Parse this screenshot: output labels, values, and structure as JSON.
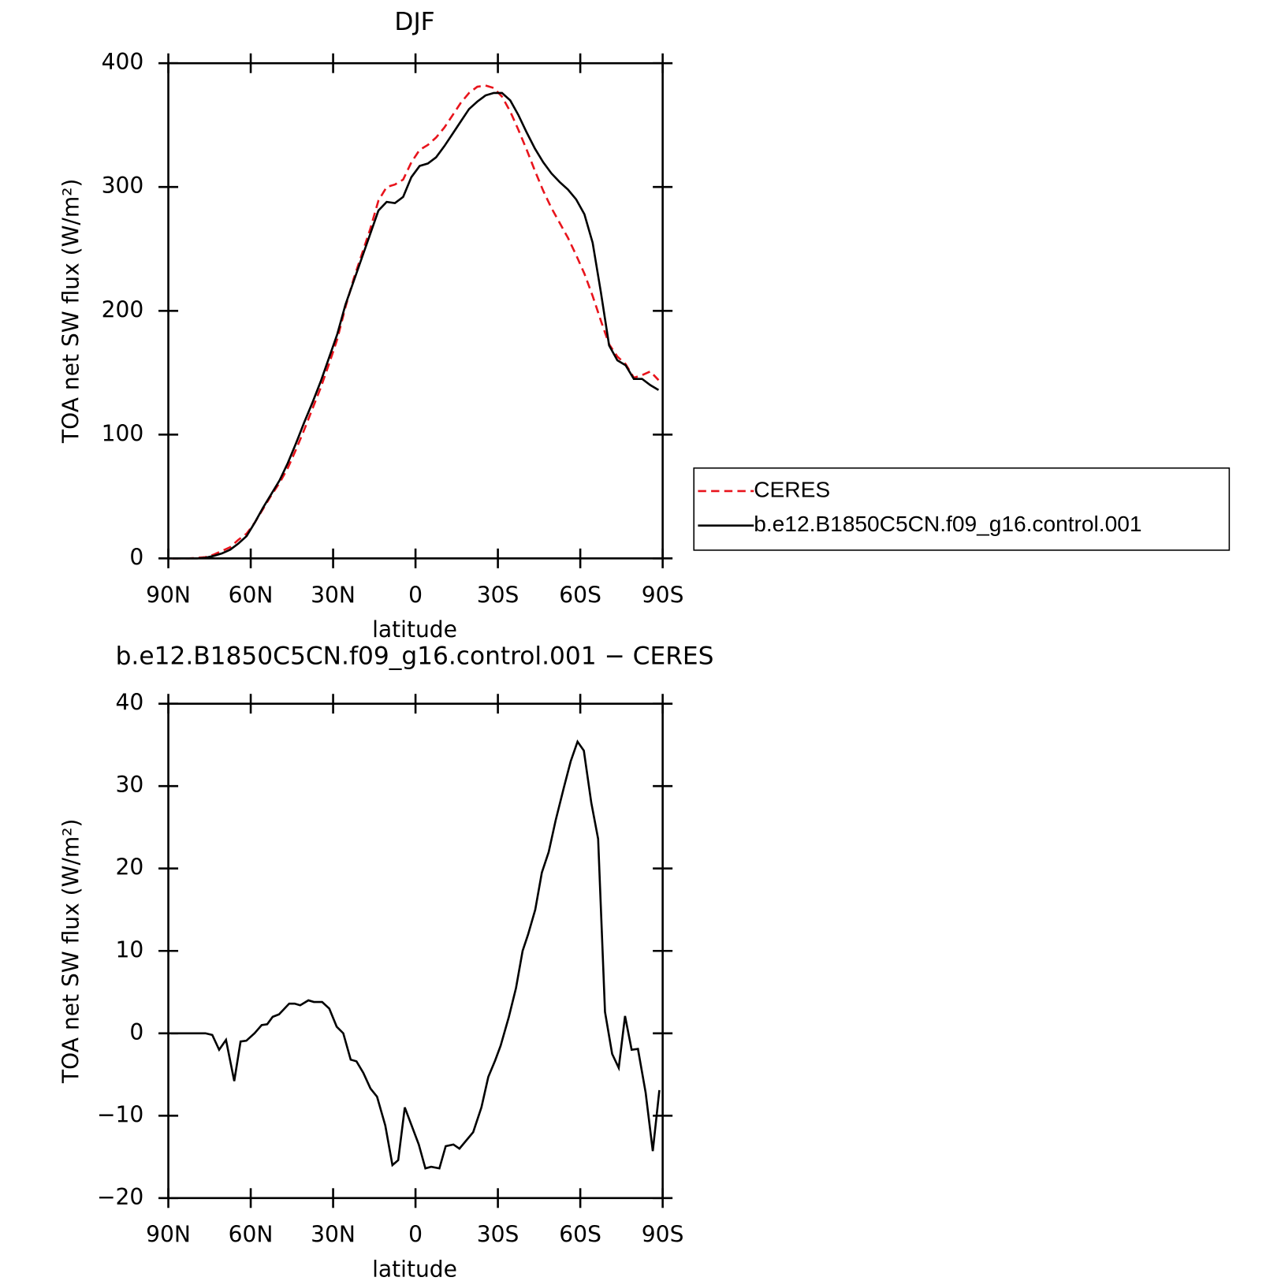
{
  "chart_data": [
    {
      "type": "line",
      "title": "DJF",
      "x_label": "latitude",
      "y_label": "TOA net SW flux (W/m²)",
      "x": [
        88.5,
        85.5,
        82.5,
        79.5,
        76.5,
        73.5,
        70.5,
        67.5,
        64.5,
        61.5,
        58.5,
        55.5,
        52.5,
        49.5,
        46.5,
        43.5,
        40.5,
        37.5,
        34.5,
        31.5,
        28.5,
        25.5,
        22.5,
        19.5,
        16.5,
        13.5,
        10.5,
        7.5,
        4.5,
        1.5,
        -1.5,
        -4.5,
        -7.5,
        -10.5,
        -13.5,
        -16.5,
        -19.5,
        -22.5,
        -25.5,
        -28.5,
        -31.5,
        -34.5,
        -37.5,
        -40.5,
        -43.5,
        -46.5,
        -49.5,
        -52.5,
        -55.5,
        -58.5,
        -61.5,
        -64.5,
        -67.5,
        -70.5,
        -73.5,
        -76.5,
        -79.5,
        -82.5,
        -85.5,
        -88.5
      ],
      "series": [
        {
          "name": "CERES",
          "color": "#e8141c",
          "dashed": true,
          "values": [
            0,
            0,
            0,
            0.5,
            1,
            3,
            6,
            9,
            15,
            20,
            29,
            40,
            51,
            61,
            73,
            88,
            104,
            121,
            138,
            157,
            177,
            203,
            226,
            246,
            266,
            289,
            300,
            302,
            306,
            320,
            330,
            334,
            340,
            348,
            358,
            368,
            376,
            381,
            382,
            380,
            373,
            361,
            346,
            330,
            313,
            297,
            283,
            271,
            259,
            245,
            230,
            212,
            192,
            173,
            163,
            157,
            146,
            148,
            151,
            144
          ]
        },
        {
          "name": "b.e12.B1850C5CN.f09_g16.control.001",
          "color": "#000000",
          "dashed": false,
          "values": [
            0,
            0,
            0,
            0,
            0.5,
            2,
            4,
            7,
            12,
            18,
            29,
            41,
            52,
            63,
            77,
            93,
            110,
            126,
            143,
            162,
            181,
            205,
            224,
            243,
            262,
            281,
            288,
            287,
            292,
            308,
            317,
            319,
            324,
            333,
            343,
            353,
            363,
            369,
            374,
            376,
            376,
            370,
            358,
            344,
            331,
            320,
            311,
            304,
            298,
            290,
            278,
            255,
            215,
            172,
            160,
            156,
            145,
            145,
            140,
            136
          ]
        }
      ],
      "xlim": [
        90,
        -90
      ],
      "xticks": [
        {
          "value": 90,
          "label": "90N"
        },
        {
          "value": 60,
          "label": "60N"
        },
        {
          "value": 30,
          "label": "30N"
        },
        0,
        {
          "value": -30,
          "label": "30S"
        },
        {
          "value": -60,
          "label": "60S"
        },
        {
          "value": -90,
          "label": "90S"
        }
      ],
      "ylim": [
        0,
        400
      ],
      "yticks": [
        0,
        100,
        200,
        300,
        400
      ],
      "legend": "right"
    },
    {
      "type": "line",
      "title": "b.e12.B1850C5CN.f09_g16.control.001 − CERES",
      "x_label": "latitude",
      "y_label": "TOA net SW flux (W/m²)",
      "x": [
        89,
        76.5,
        74,
        71.5,
        69,
        66,
        63.7,
        61.6,
        58.6,
        56,
        54,
        52,
        49.7,
        46,
        44,
        42,
        39,
        37,
        34,
        31.4,
        28.7,
        26.3,
        23.6,
        21.5,
        19,
        16.4,
        14,
        11,
        8.4,
        6.3,
        3.9,
        -1.2,
        -3.6,
        -5.7,
        -8.7,
        -11,
        -13.8,
        -16,
        -21,
        -24,
        -26.5,
        -29,
        -31,
        -34,
        -36.6,
        -39,
        -41,
        -43.6,
        -46,
        -48.5,
        -51,
        -54,
        -56.5,
        -59,
        -61.3,
        -64,
        -66.5,
        -69,
        -71.6,
        -74,
        -76.3,
        -78.7,
        -81,
        -83.8,
        -86.4,
        -88.8
      ],
      "series": [
        {
          "color": "#000000",
          "dashed": false,
          "values": [
            0,
            0,
            -0.2,
            -2,
            -0.8,
            -5.8,
            -1,
            -0.9,
            0,
            1,
            1.1,
            2,
            2.3,
            3.6,
            3.6,
            3.4,
            4,
            3.8,
            3.8,
            3,
            0.8,
            0,
            -3.2,
            -3.4,
            -4.8,
            -6.7,
            -7.7,
            -11.2,
            -16,
            -15.4,
            -9,
            -13.5,
            -16.4,
            -16.2,
            -16.4,
            -13.7,
            -13.5,
            -14,
            -12,
            -9,
            -5.3,
            -3.3,
            -1.5,
            2,
            5.5,
            10,
            12,
            15,
            19.5,
            22,
            25.8,
            29.8,
            33,
            35.4,
            34.3,
            28,
            23.6,
            2.6,
            -2.5,
            -4.2,
            2.1,
            -2,
            -1.9,
            -7.2,
            -14.3,
            -6.9
          ]
        }
      ],
      "xlim": [
        90,
        -90
      ],
      "xticks": [
        {
          "value": 90,
          "label": "90N"
        },
        {
          "value": 60,
          "label": "60N"
        },
        {
          "value": 30,
          "label": "30N"
        },
        0,
        {
          "value": -30,
          "label": "30S"
        },
        {
          "value": -60,
          "label": "60S"
        },
        {
          "value": -90,
          "label": "90S"
        }
      ],
      "ylim": [
        -20,
        40
      ],
      "yticks": [
        {
          "value": -20,
          "label": "−20"
        },
        {
          "value": -10,
          "label": "−10"
        },
        0,
        10,
        20,
        30,
        40
      ]
    }
  ]
}
